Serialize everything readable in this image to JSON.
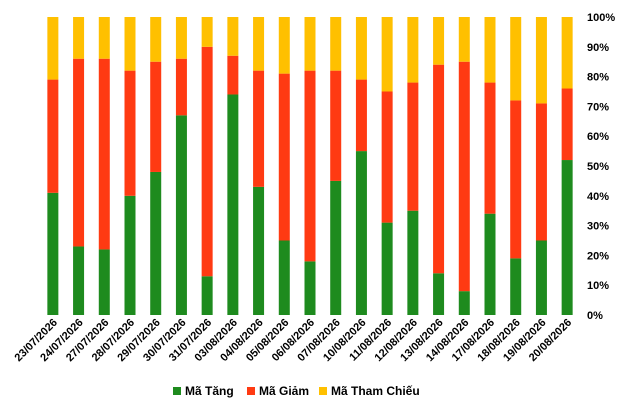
{
  "chart_data": {
    "type": "bar",
    "stacked": true,
    "percent": true,
    "categories": [
      "23/07/2026",
      "24/07/2026",
      "27/07/2026",
      "28/07/2026",
      "29/07/2026",
      "30/07/2026",
      "31/07/2026",
      "03/08/2026",
      "04/08/2026",
      "05/08/2026",
      "06/08/2026",
      "07/08/2026",
      "10/08/2026",
      "11/08/2026",
      "12/08/2026",
      "13/08/2026",
      "14/08/2026",
      "17/08/2026",
      "18/08/2026",
      "19/08/2026",
      "20/08/2026"
    ],
    "series": [
      {
        "name": "Mã Tăng",
        "color": "#1E8B1E",
        "values": [
          41,
          23,
          22,
          40,
          48,
          67,
          13,
          74,
          43,
          25,
          18,
          45,
          55,
          31,
          35,
          14,
          8,
          34,
          19,
          25,
          52
        ]
      },
      {
        "name": "Mã Giảm",
        "color": "#FF3A12",
        "values": [
          38,
          63,
          64,
          42,
          37,
          19,
          77,
          13,
          39,
          56,
          64,
          37,
          24,
          44,
          43,
          70,
          77,
          44,
          53,
          46,
          24
        ]
      },
      {
        "name": "Mã Tham Chiếu",
        "color": "#FFC000",
        "values": [
          21,
          14,
          14,
          18,
          15,
          14,
          10,
          13,
          18,
          19,
          18,
          18,
          21,
          25,
          22,
          16,
          15,
          22,
          28,
          29,
          24
        ]
      }
    ],
    "ylim": [
      0,
      100
    ],
    "y_ticks": [
      "0%",
      "10%",
      "20%",
      "30%",
      "40%",
      "50%",
      "60%",
      "70%",
      "80%",
      "90%",
      "100%"
    ],
    "y_axis_position": "right",
    "grid": false,
    "legend_position": "bottom"
  }
}
